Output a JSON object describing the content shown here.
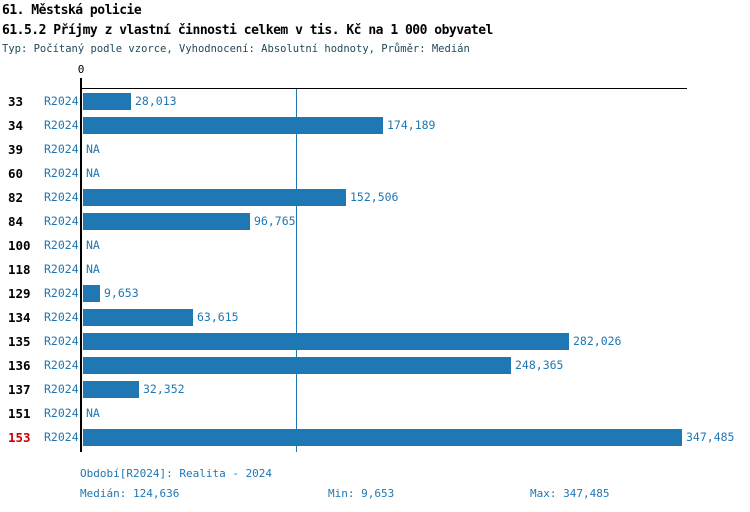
{
  "header": {
    "title": "61. Městská policie",
    "subtitle": "61.5.2 Příjmy z vlastní činnosti celkem v tis. Kč na 1 000 obyvatel",
    "meta": "Typ: Počítaný podle vzorce, Vyhodnocení: Absolutní hodnoty, Průměr: Medián"
  },
  "chart_data": {
    "type": "bar",
    "orientation": "horizontal",
    "title": "61.5.2 Příjmy z vlastní činnosti celkem v tis. Kč na 1 000 obyvatel",
    "categories": [
      "33",
      "34",
      "39",
      "60",
      "82",
      "84",
      "100",
      "118",
      "129",
      "134",
      "135",
      "136",
      "137",
      "151",
      "153"
    ],
    "series_label": "R2024",
    "values": [
      28013,
      174189,
      null,
      null,
      152506,
      96765,
      null,
      null,
      9653,
      63615,
      282026,
      248365,
      32352,
      null,
      347485
    ],
    "value_labels": [
      "28,013",
      "174,189",
      "NA",
      "NA",
      "152,506",
      "96,765",
      "NA",
      "NA",
      "9,653",
      "63,615",
      "282,026",
      "248,365",
      "32,352",
      "NA",
      "347,485"
    ],
    "na_label": "NA",
    "highlighted_category": "153",
    "median_value": 124636,
    "min_value": 9653,
    "max_value": 347485,
    "x_axis": {
      "zero_label": "0",
      "xlim": [
        0,
        350000
      ],
      "grid": false
    },
    "legend": "none",
    "bar_color": "#1F77B4",
    "median_line_color": "#1F77B4",
    "label_color": "#1F77B4",
    "highlight_color": "#CC0000"
  },
  "footer": {
    "period": "Období[R2024]: Realita - 2024",
    "median": "Medián: 124,636",
    "min": "Min: 9,653",
    "max": "Max: 347,485"
  }
}
